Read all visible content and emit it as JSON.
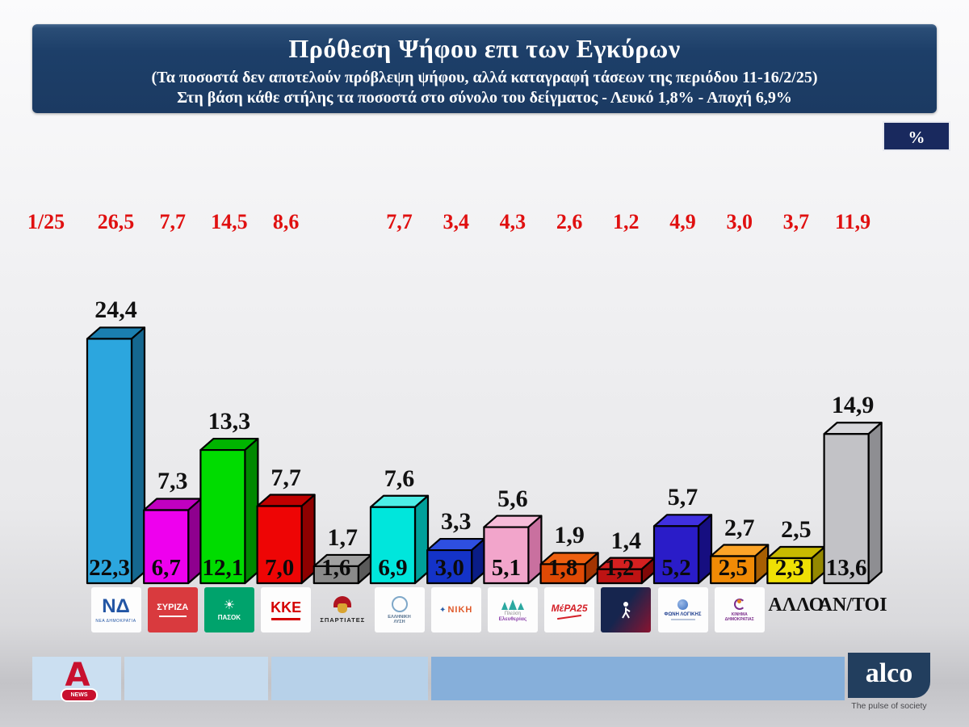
{
  "header": {
    "title": "Πρόθεση Ψήφου επι των Εγκύρων",
    "subtitle1": "(Τα ποσοστά δεν αποτελούν πρόβλεψη ψήφου, αλλά καταγραφή τάσεων της περιόδου  11-16/2/25)",
    "subtitle2": "Στη βάση κάθε στήλης τα ποσοστά στο σύνολο του δείγματος - Λευκό 1,8% - Αποχή 6,9%"
  },
  "percent_badge": "%",
  "prev_period_label": "1/25",
  "chart_data": {
    "type": "bar",
    "title": "Πρόθεση Ψήφου επι των Εγκύρων",
    "period": "11-16/2/25",
    "unit": "%",
    "ylim": [
      0,
      26
    ],
    "categories": [
      "ΝΕΑ ΔΗΜΟΚΡΑΤΙΑ",
      "ΣΥΡΙΖΑ",
      "ΠΑΣΟΚ",
      "ΚΚΕ",
      "ΣΠΑΡΤΙΑΤΕΣ",
      "ΕΛΛΗΝΙΚΗ ΛΥΣΗ",
      "ΝΙΚΗ",
      "ΠΛΕΥΣΗ ΕΛΕΥΘΕΡΙΑΣ",
      "ΜέΡΑ25",
      "ΝΕΑ ΑΡΙΣΤΕΡΑ",
      "ΦΩΝΗ ΛΟΓΙΚΗΣ",
      "ΚΙΝΗΜΑ ΔΗΜΟΚΡΑΤΙΑΣ",
      "ΑΛΛΟ",
      "ΑΝ/ΤΟΙ"
    ],
    "series": [
      {
        "name": "1/25",
        "color": "#e01010",
        "values": [
          26.5,
          7.7,
          14.5,
          8.6,
          null,
          7.7,
          3.4,
          4.3,
          2.6,
          1.2,
          4.9,
          3.0,
          3.7,
          11.9
        ]
      },
      {
        "name": "επί των Εγκύρων",
        "color": "#111111",
        "values": [
          24.4,
          7.3,
          13.3,
          7.7,
          1.7,
          7.6,
          3.3,
          5.6,
          1.9,
          1.4,
          5.7,
          2.7,
          2.5,
          14.9
        ]
      },
      {
        "name": "στο σύνολο του δείγματος",
        "color": "#111111",
        "values": [
          22.3,
          6.7,
          12.1,
          7.0,
          1.6,
          6.9,
          3.0,
          5.1,
          1.8,
          1.2,
          5.2,
          2.5,
          2.3,
          13.6
        ]
      }
    ],
    "bar_colors": [
      {
        "front": "#2ca6de",
        "top": "#1a7fb0",
        "side": "#15678f"
      },
      {
        "front": "#ee00ee",
        "top": "#c000c0",
        "side": "#8e008e"
      },
      {
        "front": "#00dc00",
        "top": "#00b400",
        "side": "#008800"
      },
      {
        "front": "#ee0505",
        "top": "#c00000",
        "side": "#8e0000"
      },
      {
        "front": "#8a8a8a",
        "top": "#a0a0a0",
        "side": "#5a5a5a"
      },
      {
        "front": "#00e6dc",
        "top": "#4deee6",
        "side": "#00a09a"
      },
      {
        "front": "#1433c8",
        "top": "#2e4fe0",
        "side": "#0a1d86"
      },
      {
        "front": "#f2a5cb",
        "top": "#f7bcd9",
        "side": "#c9709f"
      },
      {
        "front": "#e04a05",
        "top": "#ee6010",
        "side": "#a23402"
      },
      {
        "front": "#be1313",
        "top": "#d42020",
        "side": "#800808"
      },
      {
        "front": "#2a1cc8",
        "top": "#4030e0",
        "side": "#160e80"
      },
      {
        "front": "#f08a05",
        "top": "#fca428",
        "side": "#a85f02"
      },
      {
        "front": "#efe005",
        "top": "#c8ba00",
        "side": "#948800"
      },
      {
        "front": "#c2c2c6",
        "top": "#d8d8dc",
        "side": "#8e8e92"
      }
    ]
  },
  "logos": [
    {
      "type": "nd",
      "label": "ΝΔ",
      "caption": "ΝΕΑ ΔΗΜΟΚΡΑΤΙΑ",
      "fg": "#2255a4"
    },
    {
      "type": "fill",
      "label": "ΣΥΡΙΖΑ",
      "bg": "#d93a3e",
      "fg": "#ffffff"
    },
    {
      "type": "pasok",
      "label": "ΠΑΣΟΚ",
      "bg": "#00a36c",
      "fg": "#ffffff"
    },
    {
      "type": "kke",
      "label": "ΚΚΕ",
      "fg": "#d40000"
    },
    {
      "type": "helmet",
      "label": "ΣΠΑΡΤΙΑΤΕΣ",
      "fg": "#222222",
      "crest": "#b01420",
      "mask": "#d9a431"
    },
    {
      "type": "ring",
      "label": "ΕΛΛΗΝΙΚΗ",
      "label2": "ΛΥΣΗ",
      "fg": "#55718e",
      "ring": "#7fa8c9"
    },
    {
      "type": "niki",
      "label": "ΝΙΚΗ",
      "fg": "#e05a2b",
      "accent": "#2c5fa8"
    },
    {
      "type": "sails",
      "label": "Πλεύση",
      "label2": "Ελευθερίας",
      "fg": "#8e44ad",
      "sail": "#2ba8a0"
    },
    {
      "type": "mera",
      "label": "ΜέΡΑ25",
      "fg": "#d42028"
    },
    {
      "type": "figure",
      "label": "",
      "bg1": "#16254e",
      "bg2": "#8a1430"
    },
    {
      "type": "foni",
      "label": "ΦΩΝΗ ΛΟΓΙΚΗΣ",
      "fg": "#1f3f8f",
      "ball": "#3a6fc0"
    },
    {
      "type": "kindim",
      "label": "ΚΙΝΗΜΑ",
      "label2": "ΔΗΜΟΚΡΑΤΙΑΣ",
      "fg": "#7b2d8b",
      "dot": "#e8821e"
    },
    {
      "type": "plain",
      "label": "ΑΛΛΟ"
    },
    {
      "type": "plain",
      "label": "ΑΝ/ΤΟΙ"
    }
  ],
  "footer": {
    "alpha_news_letter": "Α",
    "alpha_news_text": "NEWS",
    "alco_text": "alco",
    "alco_tagline": "The pulse of society"
  }
}
